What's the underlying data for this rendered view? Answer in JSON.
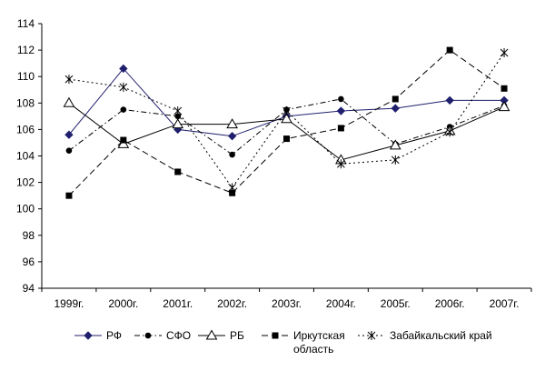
{
  "chart_data": {
    "type": "line",
    "title": "",
    "xlabel": "",
    "ylabel": "",
    "categories": [
      "1999г.",
      "2000г.",
      "2001г.",
      "2002г.",
      "2003г.",
      "2004г.",
      "2005г.",
      "2006г.",
      "2007г."
    ],
    "ylim": [
      94,
      114
    ],
    "yticks": [
      94,
      96,
      98,
      100,
      102,
      104,
      106,
      108,
      110,
      112,
      114
    ],
    "grid": false,
    "legend_position": "bottom",
    "series": [
      {
        "name": "РФ",
        "values": [
          105.6,
          110.6,
          106.0,
          105.5,
          107.0,
          107.4,
          107.6,
          108.2,
          108.2
        ],
        "marker": "diamond",
        "line": "solid",
        "color": "#1f1f6e"
      },
      {
        "name": "СФО",
        "values": [
          104.4,
          107.5,
          107.0,
          104.1,
          107.5,
          108.3,
          104.9,
          106.2,
          107.8
        ],
        "marker": "circle",
        "line": "dashdot",
        "color": "#000000"
      },
      {
        "name": "РБ",
        "values": [
          108.0,
          104.9,
          106.4,
          106.4,
          106.8,
          103.7,
          104.8,
          105.9,
          107.7
        ],
        "marker": "triangle",
        "line": "solid",
        "color": "#000000"
      },
      {
        "name": "Иркутская область",
        "values": [
          101.0,
          105.2,
          102.8,
          101.2,
          105.3,
          106.1,
          108.3,
          112.0,
          109.1
        ],
        "marker": "square",
        "line": "dashed",
        "color": "#000000"
      },
      {
        "name": "Забайкальский край",
        "values": [
          109.8,
          109.2,
          107.4,
          101.6,
          107.4,
          103.4,
          103.7,
          105.8,
          111.8
        ],
        "marker": "star",
        "line": "dotted",
        "color": "#000000"
      }
    ]
  }
}
